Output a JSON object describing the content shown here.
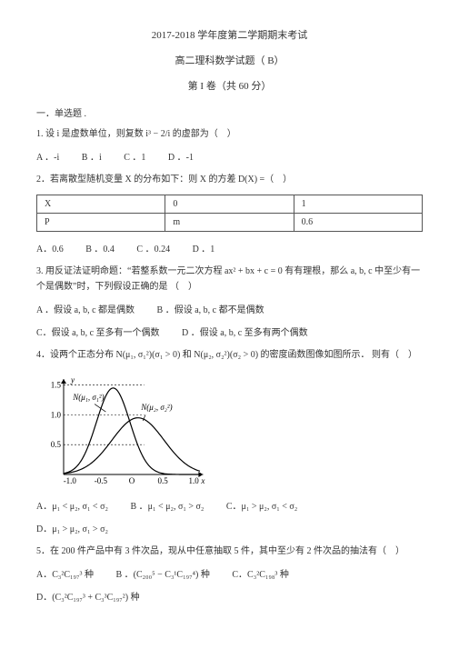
{
  "header": {
    "line1": "2017-2018 学年度第二学期期末考试",
    "line2": "高二理科数学试题（ B）",
    "line3": "第 I 卷（共 60 分）"
  },
  "section1": "一．单选题 .",
  "q1": {
    "text": "1. 设 i 是虚数单位，则复数 i³ − 2/i 的虚部为（　）",
    "optA": "A ．-i",
    "optB": "B ．i",
    "optC": "C ．1",
    "optD": "D ．-1"
  },
  "q2": {
    "text": "2．若离散型随机变量 X 的分布如下：则 X 的方差 D(X) =（　）",
    "tableH1": "X",
    "tableH2": "0",
    "tableH3": "1",
    "tableR1": "P",
    "tableR2": "m",
    "tableR3": "0.6",
    "optA": "A．0.6",
    "optB": "B ．0.4",
    "optC": "C ．0.24",
    "optD": "D ．1"
  },
  "q3": {
    "text": "3. 用反证法证明命题：“若整系数一元二次方程 ax² + bx + c = 0 有有理根，那么 a, b, c 中至少有一个是偶数”时，下列假设正确的是 （　）",
    "optA": "A ．假设 a, b, c 都是偶数",
    "optB": "B ．假设 a, b, c 都不是偶数",
    "optC": "C．假设 a, b, c 至多有一个偶数",
    "optD": "D ．假设 a, b, c 至多有两个偶数"
  },
  "q4": {
    "text": "4．设两个正态分布 N(μ₁, σ₁²)(σ₁ > 0) 和 N(μ₂, σ₂²)(σ₂ > 0) 的密度函数图像如图所示． 则有（　）",
    "optA": "A．μ₁ < μ₂, σ₁ < σ₂",
    "optB": "B ．μ₁ < μ₂, σ₁ > σ₂",
    "optC": "C．μ₁ > μ₂, σ₁ < σ₂",
    "optD": "D．μ₁ > μ₂, σ₁ > σ₂"
  },
  "q5": {
    "text": "5．在 200 件产品中有 3 件次品，现从中任意抽取 5 件，其中至少有 2 件次品的抽法有（　）",
    "optA": "A．C₃²C₁₉₇³ 种",
    "optB": "B ．(C₂₀₀⁵ − C₃¹C₁₉₇⁴) 种",
    "optC": "C．C₃²C₁₉₈³ 种",
    "optD": "D．(C₃²C₁₉₇³ + C₃³C₁₉₇²) 种"
  },
  "graph": {
    "label1": "N(μ₁, σ₁²)",
    "label2": "N(μ₂, σ₂²)",
    "ytick1": "1.5",
    "ytick2": "1.0",
    "ytick3": "0.5",
    "axisY": "y",
    "axisX": "x",
    "xticks": [
      "-1.0",
      "-0.5",
      "O",
      "0.5",
      "1.0"
    ],
    "curve1": {
      "mu": -0.3,
      "sigma": 0.27,
      "peak": 1.45
    },
    "curve2": {
      "mu": 0.1,
      "sigma": 0.42,
      "peak": 0.95
    },
    "axis_color": "#000000",
    "curve_color": "#000000",
    "stroke_width": 1.2,
    "label_fontsize": 9
  }
}
